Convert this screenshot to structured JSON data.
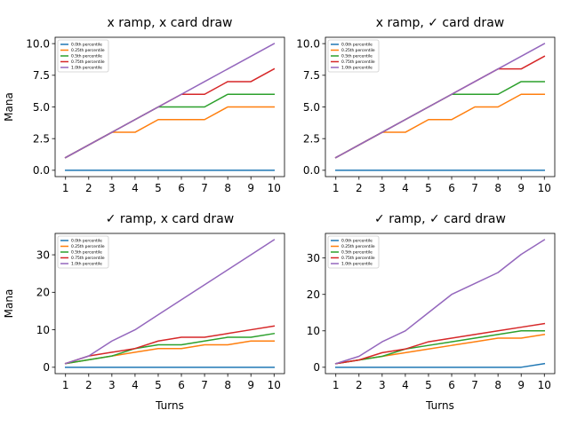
{
  "figure": {
    "background": "#ffffff"
  },
  "legend_labels": [
    "0.0th percentile",
    "0.25th percentile",
    "0.5th percentile",
    "0.75th percentile",
    "1.0th percentile"
  ],
  "series_colors": [
    "#1f77b4",
    "#ff7f0e",
    "#2ca02c",
    "#d62728",
    "#9467bd"
  ],
  "chart_data": [
    {
      "type": "line",
      "title": "x ramp, x card draw",
      "xlabel": "",
      "ylabel": "Mana",
      "x": [
        1,
        2,
        3,
        4,
        5,
        6,
        7,
        8,
        9,
        10
      ],
      "xticks": [
        1,
        2,
        3,
        4,
        5,
        6,
        7,
        8,
        9,
        10
      ],
      "ylim": [
        -0.5,
        10.5
      ],
      "yticks": [
        0.0,
        2.5,
        5.0,
        7.5,
        10.0
      ],
      "ytick_labels": [
        "0.0",
        "2.5",
        "5.0",
        "7.5",
        "10.0"
      ],
      "grid": false,
      "legend": "top-left",
      "series": [
        {
          "name": "0.0th percentile",
          "values": [
            0,
            0,
            0,
            0,
            0,
            0,
            0,
            0,
            0,
            0
          ]
        },
        {
          "name": "0.25th percentile",
          "values": [
            1,
            2,
            3,
            3,
            4,
            4,
            4,
            5,
            5,
            5
          ]
        },
        {
          "name": "0.5th percentile",
          "values": [
            1,
            2,
            3,
            4,
            5,
            5,
            5,
            6,
            6,
            6
          ]
        },
        {
          "name": "0.75th percentile",
          "values": [
            1,
            2,
            3,
            4,
            5,
            6,
            6,
            7,
            7,
            8
          ]
        },
        {
          "name": "1.0th percentile",
          "values": [
            1,
            2,
            3,
            4,
            5,
            6,
            7,
            8,
            9,
            10
          ]
        }
      ]
    },
    {
      "type": "line",
      "title": "x ramp, ✓ card draw",
      "xlabel": "",
      "ylabel": "",
      "x": [
        1,
        2,
        3,
        4,
        5,
        6,
        7,
        8,
        9,
        10
      ],
      "xticks": [
        1,
        2,
        3,
        4,
        5,
        6,
        7,
        8,
        9,
        10
      ],
      "ylim": [
        -0.5,
        10.5
      ],
      "yticks": [
        0.0,
        2.5,
        5.0,
        7.5,
        10.0
      ],
      "ytick_labels": [
        "0.0",
        "2.5",
        "5.0",
        "7.5",
        "10.0"
      ],
      "grid": false,
      "legend": "top-left",
      "series": [
        {
          "name": "0.0th percentile",
          "values": [
            0,
            0,
            0,
            0,
            0,
            0,
            0,
            0,
            0,
            0
          ]
        },
        {
          "name": "0.25th percentile",
          "values": [
            1,
            2,
            3,
            3,
            4,
            4,
            5,
            5,
            6,
            6
          ]
        },
        {
          "name": "0.5th percentile",
          "values": [
            1,
            2,
            3,
            4,
            5,
            6,
            6,
            6,
            7,
            7
          ]
        },
        {
          "name": "0.75th percentile",
          "values": [
            1,
            2,
            3,
            4,
            5,
            6,
            7,
            8,
            8,
            9
          ]
        },
        {
          "name": "1.0th percentile",
          "values": [
            1,
            2,
            3,
            4,
            5,
            6,
            7,
            8,
            9,
            10
          ]
        }
      ]
    },
    {
      "type": "line",
      "title": "✓ ramp, x card draw",
      "xlabel": "Turns",
      "ylabel": "Mana",
      "x": [
        1,
        2,
        3,
        4,
        5,
        6,
        7,
        8,
        9,
        10
      ],
      "xticks": [
        1,
        2,
        3,
        4,
        5,
        6,
        7,
        8,
        9,
        10
      ],
      "ylim": [
        -1.7,
        35.7
      ],
      "yticks": [
        0,
        10,
        20,
        30
      ],
      "ytick_labels": [
        "0",
        "10",
        "20",
        "30"
      ],
      "grid": false,
      "legend": "top-left",
      "series": [
        {
          "name": "0.0th percentile",
          "values": [
            0,
            0,
            0,
            0,
            0,
            0,
            0,
            0,
            0,
            0
          ]
        },
        {
          "name": "0.25th percentile",
          "values": [
            1,
            2,
            3,
            4,
            5,
            5,
            6,
            6,
            7,
            7
          ]
        },
        {
          "name": "0.5th percentile",
          "values": [
            1,
            2,
            3,
            5,
            6,
            6,
            7,
            8,
            8,
            9
          ]
        },
        {
          "name": "0.75th percentile",
          "values": [
            1,
            3,
            4,
            5,
            7,
            8,
            8,
            9,
            10,
            11
          ]
        },
        {
          "name": "1.0th percentile",
          "values": [
            1,
            3,
            7,
            10,
            14,
            18,
            22,
            26,
            30,
            34
          ]
        }
      ]
    },
    {
      "type": "line",
      "title": "✓ ramp, ✓ card draw",
      "xlabel": "Turns",
      "ylabel": "",
      "x": [
        1,
        2,
        3,
        4,
        5,
        6,
        7,
        8,
        9,
        10
      ],
      "xticks": [
        1,
        2,
        3,
        4,
        5,
        6,
        7,
        8,
        9,
        10
      ],
      "ylim": [
        -1.75,
        36.75
      ],
      "yticks": [
        0,
        10,
        20,
        30
      ],
      "ytick_labels": [
        "0",
        "10",
        "20",
        "30"
      ],
      "grid": false,
      "legend": "top-left",
      "series": [
        {
          "name": "0.0th percentile",
          "values": [
            0,
            0,
            0,
            0,
            0,
            0,
            0,
            0,
            0,
            1
          ]
        },
        {
          "name": "0.25th percentile",
          "values": [
            1,
            2,
            3,
            4,
            5,
            6,
            7,
            8,
            8,
            9
          ]
        },
        {
          "name": "0.5th percentile",
          "values": [
            1,
            2,
            3,
            5,
            6,
            7,
            8,
            9,
            10,
            10
          ]
        },
        {
          "name": "0.75th percentile",
          "values": [
            1,
            2,
            4,
            5,
            7,
            8,
            9,
            10,
            11,
            12
          ]
        },
        {
          "name": "1.0th percentile",
          "values": [
            1,
            3,
            7,
            10,
            15,
            20,
            23,
            26,
            31,
            35
          ]
        }
      ]
    }
  ]
}
